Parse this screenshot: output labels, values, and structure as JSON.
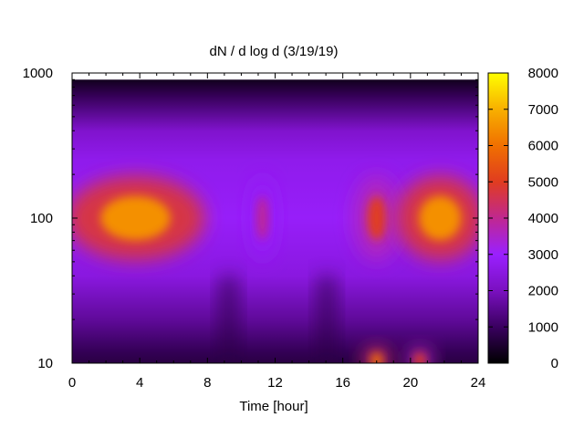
{
  "chart_data": {
    "type": "heatmap",
    "title": "dN / d log d (3/19/19)",
    "xlabel": "Time [hour]",
    "ylabel": "",
    "xlim": [
      0,
      24
    ],
    "ylim": [
      10,
      1000
    ],
    "y_scale": "log",
    "x_ticks": [
      0,
      4,
      8,
      12,
      16,
      20,
      24
    ],
    "y_ticks": [
      10,
      100,
      1000
    ],
    "colorbar": {
      "min": 0,
      "max": 8000,
      "ticks": [
        0,
        1000,
        2000,
        3000,
        4000,
        5000,
        6000,
        7000,
        8000
      ],
      "palette": [
        "#000000",
        "#3a0060",
        "#7a10c0",
        "#9a20ff",
        "#c02890",
        "#e03c20",
        "#f07000",
        "#f8b000",
        "#ffff00"
      ]
    },
    "grid": false,
    "approx_features": [
      {
        "x_range": [
          0,
          7.5
        ],
        "y_peak": 100,
        "peak_value": 6500
      },
      {
        "x_range": [
          17,
          19
        ],
        "y_peak": 100,
        "peak_value": 5000
      },
      {
        "x_range": [
          19.5,
          24
        ],
        "y_peak": 100,
        "peak_value": 6500
      },
      {
        "x_range": [
          17.5,
          18.5
        ],
        "y_peak": 10,
        "peak_value": 6000
      },
      {
        "x_range": [
          20.3,
          20.8
        ],
        "y_peak": 10,
        "peak_value": 5000
      },
      {
        "x_range": [
          11,
          11.5
        ],
        "y_peak": 100,
        "peak_value": 4000
      }
    ],
    "data_top_cutoff": 900
  }
}
